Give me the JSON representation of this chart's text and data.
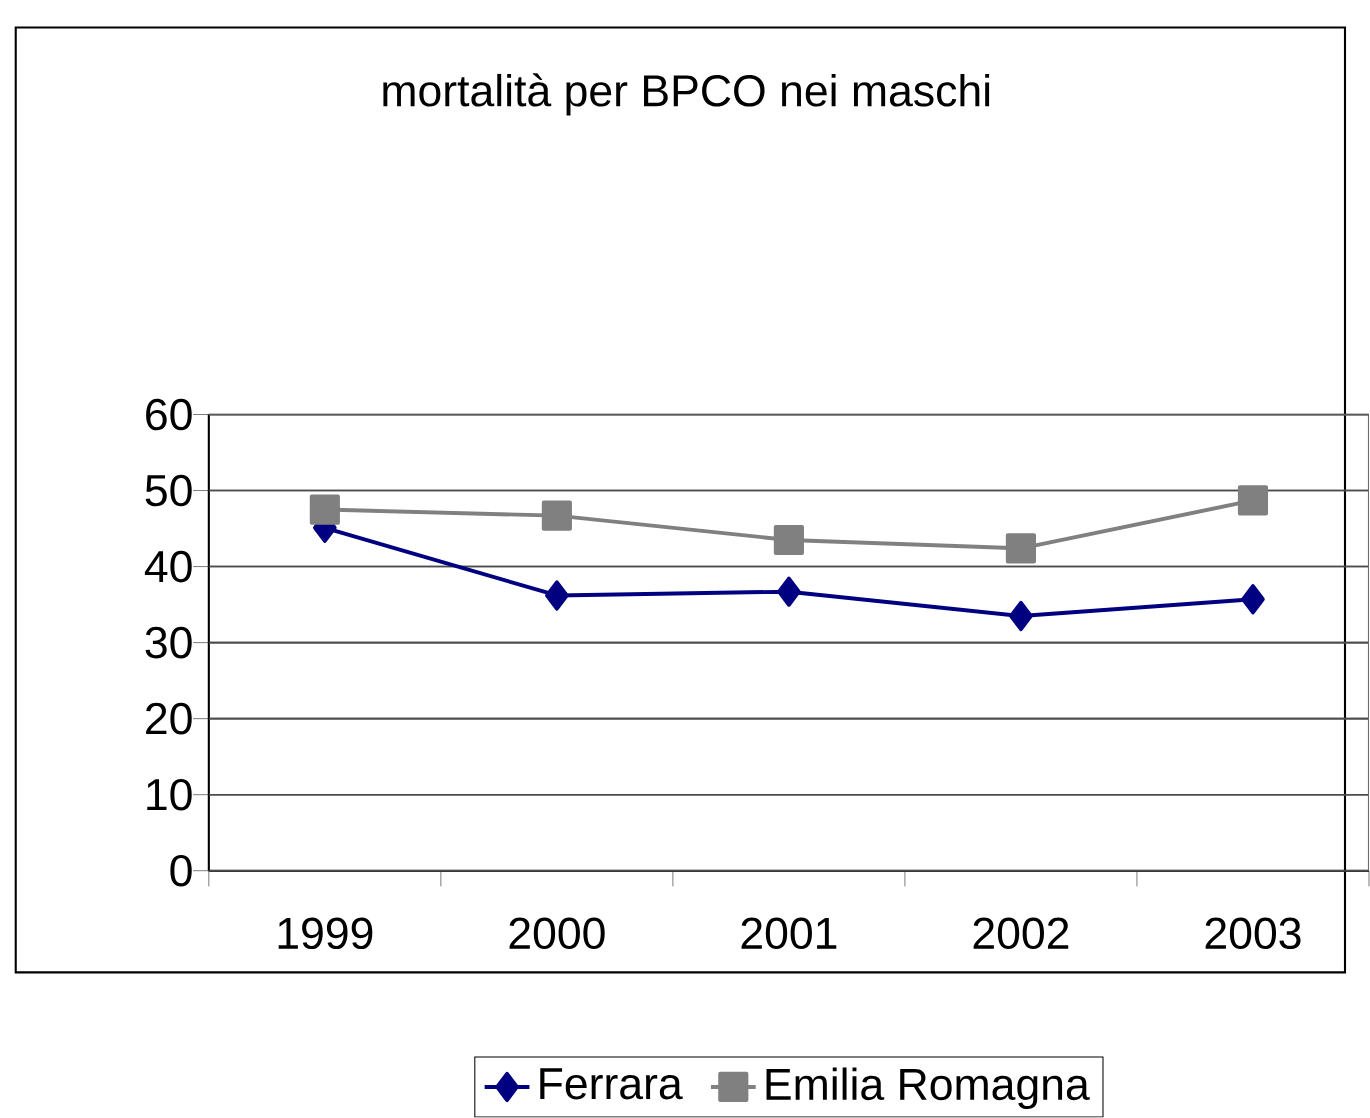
{
  "chart_data": {
    "type": "line",
    "title": "mortalità per BPCO nei maschi",
    "categories": [
      "1999",
      "2000",
      "2001",
      "2002",
      "2003"
    ],
    "series": [
      {
        "name": "Ferrara",
        "color": "#000080",
        "marker": "diamond",
        "values": [
          45.1,
          36.2,
          36.7,
          33.5,
          35.7
        ]
      },
      {
        "name": "Emilia Romagna",
        "color": "#808080",
        "marker": "square",
        "values": [
          47.5,
          46.7,
          43.5,
          42.4,
          48.7
        ]
      }
    ],
    "ylim": [
      0,
      60
    ],
    "yticks": [
      0,
      10,
      20,
      30,
      40,
      50,
      60
    ],
    "grid": "y",
    "legend": "bottom"
  }
}
